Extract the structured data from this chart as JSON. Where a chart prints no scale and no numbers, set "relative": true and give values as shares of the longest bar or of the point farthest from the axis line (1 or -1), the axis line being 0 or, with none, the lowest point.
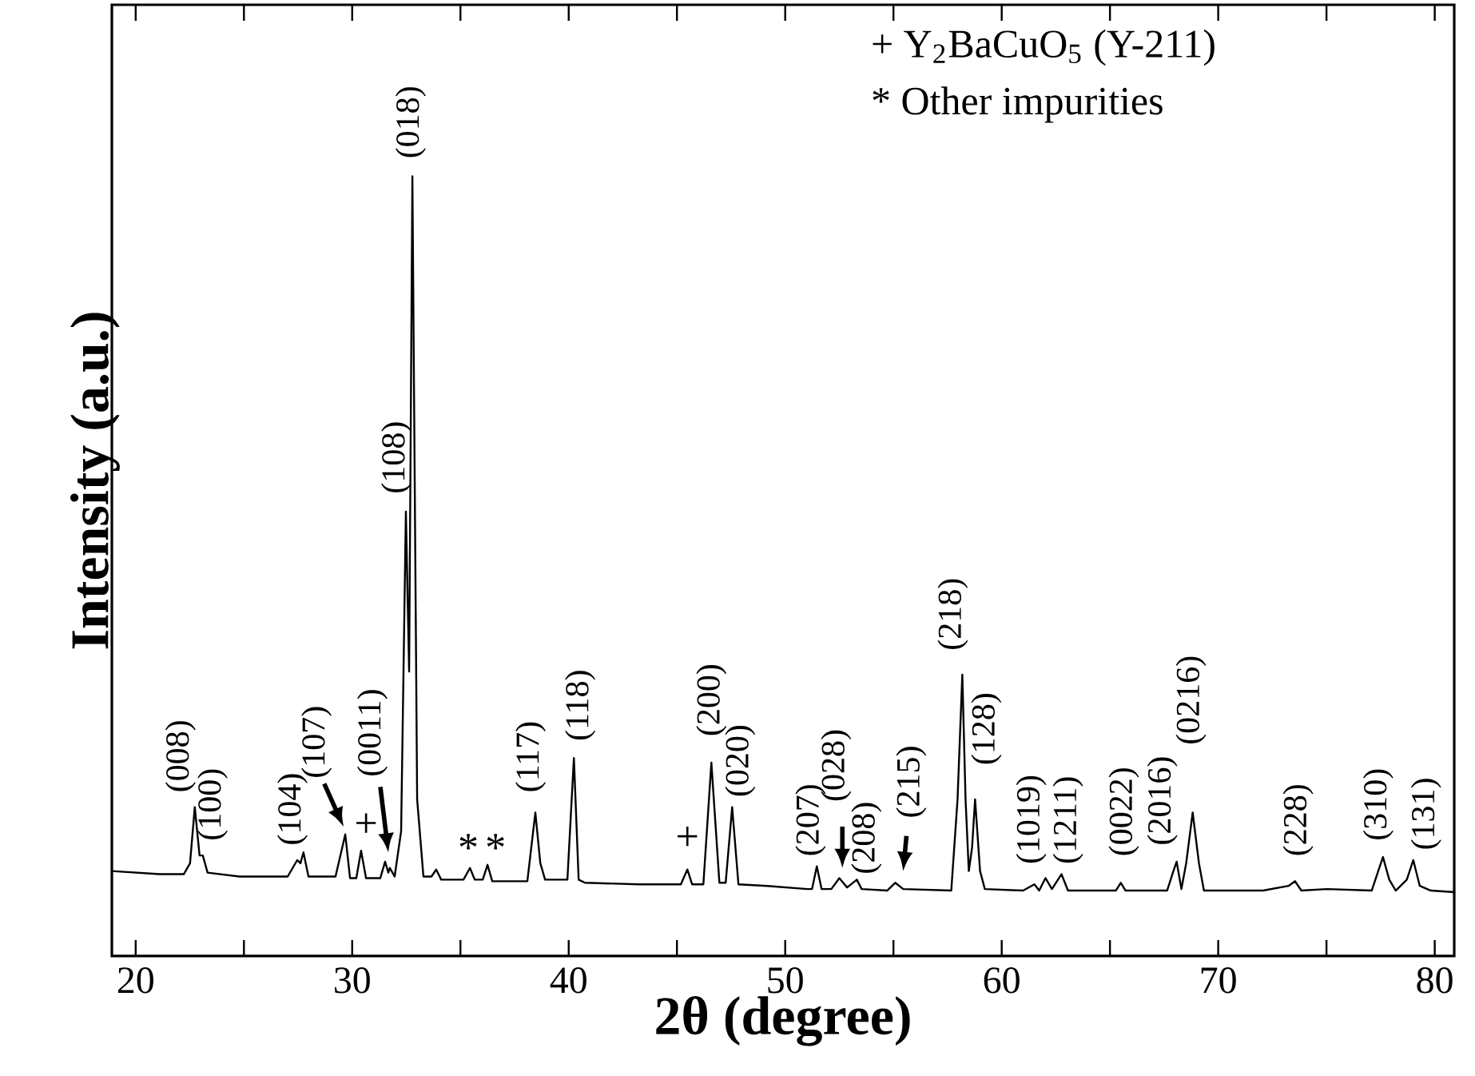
{
  "chart_data": {
    "type": "line",
    "relative": true,
    "xlabel": "**2θ  (degree)**",
    "ylabel": "**Intensity (a.u.)**",
    "xlim": [
      18.9,
      80.9
    ],
    "xticks": [
      20,
      {
        "value": 25,
        "label": null
      },
      30,
      {
        "value": 35,
        "label": null
      },
      40,
      {
        "value": 45,
        "label": null
      },
      50,
      {
        "value": 55,
        "label": null
      },
      60,
      {
        "value": 65,
        "label": null
      },
      70,
      {
        "value": 75,
        "label": null
      },
      80
    ],
    "x": [
      18.9,
      21.11,
      22.22,
      22.51,
      22.73,
      22.95,
      23.1,
      23.32,
      24.8,
      27.02,
      27.46,
      27.61,
      27.75,
      27.98,
      29.23,
      29.68,
      29.9,
      30.19,
      30.41,
      30.64,
      31.3,
      31.52,
      31.67,
      31.74,
      31.96,
      32.26,
      32.48,
      32.63,
      32.78,
      33.0,
      33.29,
      33.66,
      33.88,
      34.11,
      35.14,
      35.44,
      35.66,
      36.03,
      36.25,
      36.47,
      38.09,
      38.46,
      38.69,
      38.91,
      39.94,
      40.24,
      40.46,
      40.75,
      43.26,
      45.18,
      45.48,
      45.7,
      46.22,
      46.59,
      46.96,
      47.25,
      47.55,
      47.84,
      49.17,
      51.02,
      51.24,
      51.46,
      51.68,
      52.13,
      52.5,
      52.86,
      53.31,
      53.53,
      54.71,
      55.08,
      55.45,
      57.67,
      57.96,
      58.18,
      58.33,
      58.48,
      58.63,
      58.77,
      59.0,
      59.22,
      60.99,
      61.51,
      61.73,
      62.02,
      62.32,
      62.76,
      63.06,
      65.27,
      65.5,
      65.72,
      67.64,
      67.93,
      68.08,
      68.3,
      68.52,
      68.82,
      69.11,
      69.34,
      72.07,
      73.25,
      73.55,
      73.84,
      75.02,
      77.09,
      77.39,
      77.61,
      77.9,
      78.2,
      78.71,
      79.01,
      79.31,
      79.82,
      80.9
    ],
    "values": [
      0.109,
      0.105,
      0.105,
      0.119,
      0.191,
      0.129,
      0.129,
      0.107,
      0.102,
      0.102,
      0.123,
      0.119,
      0.133,
      0.102,
      0.102,
      0.156,
      0.1,
      0.1,
      0.135,
      0.1,
      0.1,
      0.121,
      0.107,
      0.113,
      0.102,
      0.16,
      0.57,
      0.365,
      1.0,
      0.201,
      0.102,
      0.102,
      0.111,
      0.098,
      0.098,
      0.113,
      0.098,
      0.098,
      0.117,
      0.096,
      0.096,
      0.184,
      0.119,
      0.098,
      0.098,
      0.254,
      0.098,
      0.094,
      0.092,
      0.092,
      0.111,
      0.092,
      0.092,
      0.248,
      0.094,
      0.094,
      0.191,
      0.092,
      0.09,
      0.086,
      0.086,
      0.115,
      0.086,
      0.086,
      0.1,
      0.088,
      0.098,
      0.086,
      0.084,
      0.094,
      0.086,
      0.084,
      0.201,
      0.361,
      0.201,
      0.109,
      0.139,
      0.201,
      0.109,
      0.086,
      0.084,
      0.092,
      0.084,
      0.1,
      0.086,
      0.105,
      0.084,
      0.084,
      0.094,
      0.084,
      0.084,
      0.109,
      0.121,
      0.086,
      0.119,
      0.184,
      0.119,
      0.084,
      0.084,
      0.09,
      0.096,
      0.084,
      0.086,
      0.084,
      0.109,
      0.127,
      0.098,
      0.084,
      0.098,
      0.123,
      0.09,
      0.084,
      0.082
    ],
    "color": "#000000",
    "annotations": [
      {
        "text": "(008)",
        "x": 22.73,
        "y": 0.191
      },
      {
        "text": "(100)",
        "x": 23.1,
        "y": 0.129
      },
      {
        "text": "(104)",
        "x": 27.75,
        "y": 0.133
      },
      {
        "text": "(107)",
        "x": 29.68,
        "y": 0.156
      },
      {
        "text": "(0011)",
        "x": 31.52,
        "y": 0.121
      },
      {
        "text": "(108)",
        "x": 32.48,
        "y": 0.57
      },
      {
        "text": "(018)",
        "x": 32.78,
        "y": 1.0
      },
      {
        "text": "(117)",
        "x": 38.46,
        "y": 0.184
      },
      {
        "text": "(118)",
        "x": 40.24,
        "y": 0.254
      },
      {
        "text": "(200)",
        "x": 46.59,
        "y": 0.248
      },
      {
        "text": "(020)",
        "x": 47.55,
        "y": 0.191
      },
      {
        "text": "(207)",
        "x": 51.46,
        "y": 0.115
      },
      {
        "text": "(028)",
        "x": 52.5,
        "y": 0.1
      },
      {
        "text": "(208)",
        "x": 53.31,
        "y": 0.098
      },
      {
        "text": "(215)",
        "x": 55.08,
        "y": 0.094
      },
      {
        "text": "(218)",
        "x": 58.18,
        "y": 0.361
      },
      {
        "text": "(128)",
        "x": 58.77,
        "y": 0.201
      },
      {
        "text": "(1019)",
        "x": 61.51,
        "y": 0.092
      },
      {
        "text": "(1211)",
        "x": 62.76,
        "y": 0.105
      },
      {
        "text": "(0022)",
        "x": 65.5,
        "y": 0.094
      },
      {
        "text": "(2016)",
        "x": 68.08,
        "y": 0.121
      },
      {
        "text": "(0216)",
        "x": 68.82,
        "y": 0.184
      },
      {
        "text": "(228)",
        "x": 73.55,
        "y": 0.096
      },
      {
        "text": "(310)",
        "x": 77.61,
        "y": 0.127
      },
      {
        "text": "(131)",
        "x": 79.01,
        "y": 0.123
      },
      {
        "text": "+",
        "x": 30.41,
        "y": 0.135
      },
      {
        "text": "+",
        "x": 45.48,
        "y": 0.111
      },
      {
        "text": "*",
        "x": 35.44,
        "y": 0.113
      },
      {
        "text": "*",
        "x": 36.25,
        "y": 0.117
      },
      "+  Y$_{2}$BaCuO$_{5}$ (Y-211)",
      "*  Other impurities"
    ]
  }
}
